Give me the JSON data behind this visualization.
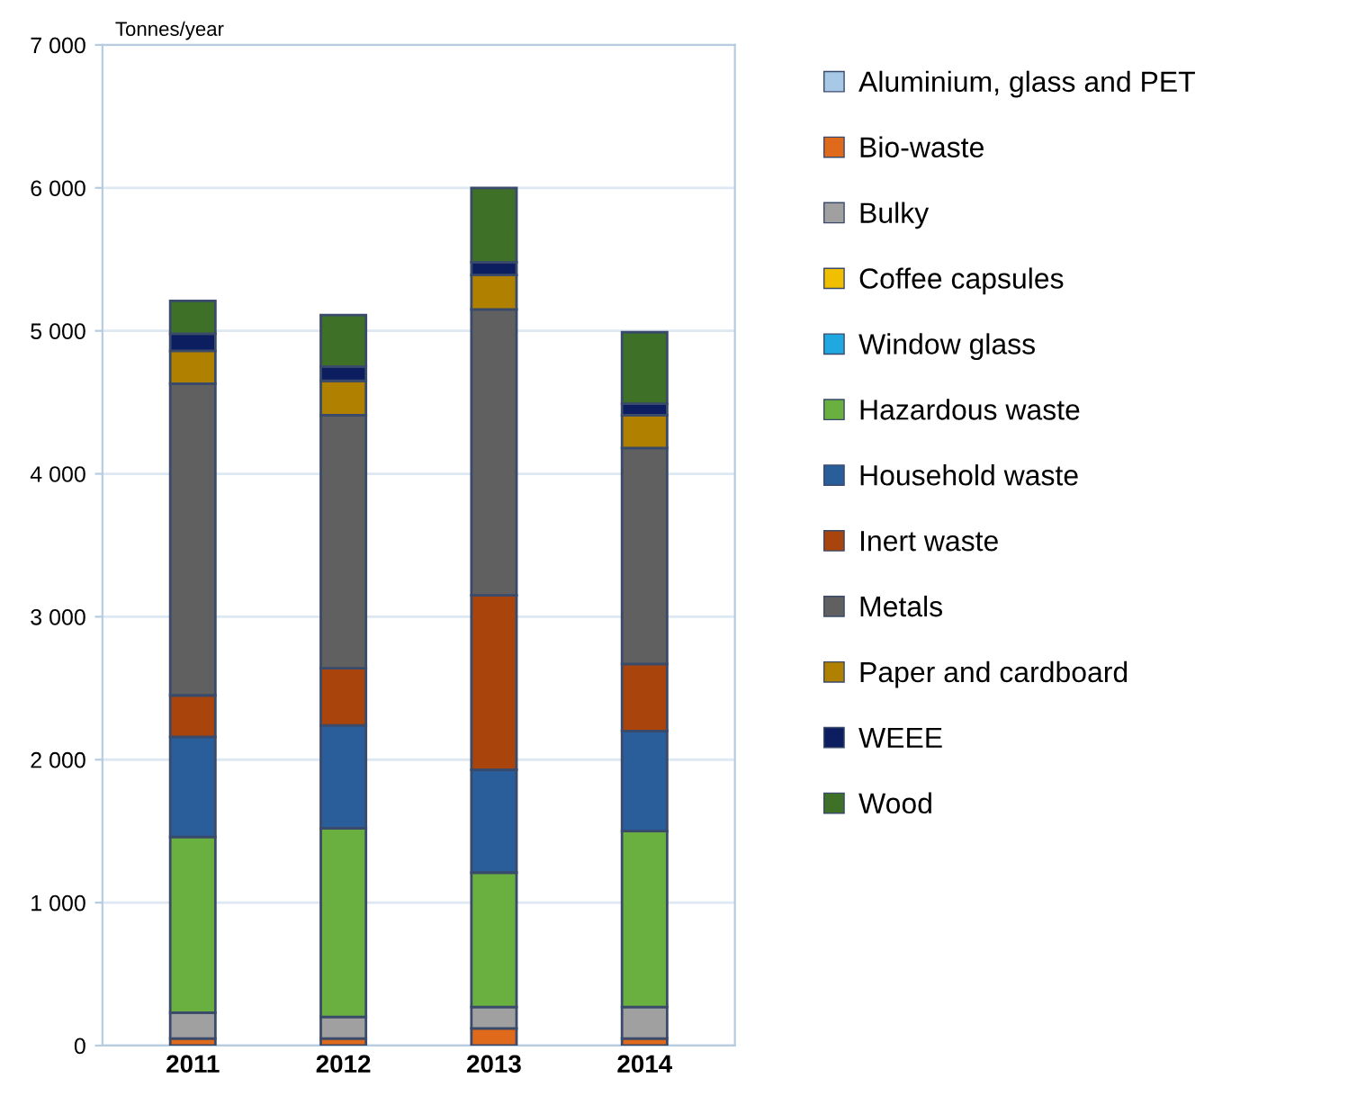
{
  "chart_data": {
    "type": "bar",
    "stacked": true,
    "ylabel": "Tonnes/year",
    "categories": [
      "2011",
      "2012",
      "2013",
      "2014"
    ],
    "series": [
      {
        "name": "Aluminium, glass and PET",
        "color": "#a8c8e8",
        "values": [
          0,
          0,
          0,
          0
        ]
      },
      {
        "name": "Bio-waste",
        "color": "#e06a1c",
        "values": [
          50,
          50,
          120,
          50
        ]
      },
      {
        "name": "Bulky",
        "color": "#a0a0a0",
        "values": [
          180,
          150,
          150,
          220
        ]
      },
      {
        "name": "Coffee capsules",
        "color": "#f0c000",
        "values": [
          0,
          0,
          0,
          0
        ]
      },
      {
        "name": "Window glass",
        "color": "#20a8e0",
        "values": [
          0,
          0,
          0,
          0
        ]
      },
      {
        "name": "Hazardous waste",
        "color": "#6ab040",
        "values": [
          1230,
          1320,
          940,
          1230
        ]
      },
      {
        "name": "Household waste",
        "color": "#2a5e9a",
        "values": [
          700,
          720,
          720,
          700
        ]
      },
      {
        "name": "Inert waste",
        "color": "#a8440c",
        "values": [
          290,
          400,
          1220,
          470
        ]
      },
      {
        "name": "Metals",
        "color": "#606060",
        "values": [
          2180,
          1770,
          2000,
          1510
        ]
      },
      {
        "name": "Paper and cardboard",
        "color": "#b08000",
        "values": [
          230,
          240,
          240,
          230
        ]
      },
      {
        "name": "WEEE",
        "color": "#0c1e60",
        "values": [
          120,
          100,
          90,
          80
        ]
      },
      {
        "name": "Wood",
        "color": "#3e7028",
        "values": [
          230,
          360,
          520,
          500
        ]
      }
    ],
    "ylim": [
      0,
      7000
    ],
    "yticks": [
      {
        "value": 0,
        "label": "0"
      },
      {
        "value": 1000,
        "label": "1 000"
      },
      {
        "value": 2000,
        "label": "2 000"
      },
      {
        "value": 3000,
        "label": "3 000"
      },
      {
        "value": 4000,
        "label": "4 000"
      },
      {
        "value": 5000,
        "label": "5 000"
      },
      {
        "value": 6000,
        "label": "6 000"
      },
      {
        "value": 7000,
        "label": "7 000"
      }
    ],
    "grid": "y",
    "legend": "right"
  }
}
